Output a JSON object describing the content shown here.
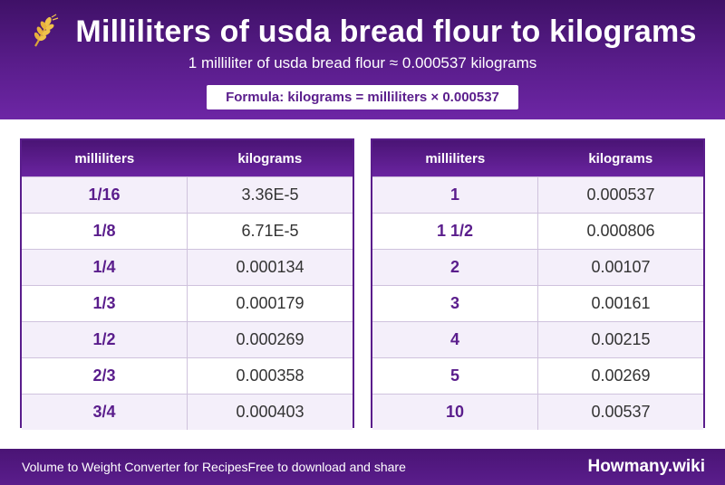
{
  "header": {
    "title": "Milliliters of usda bread flour to kilograms",
    "subtitle": "1 milliliter of usda bread flour ≈ 0.000537 kilograms",
    "formula": "Formula: kilograms = milliliters × 0.000537",
    "icon": "wheat-icon"
  },
  "tables": {
    "left": {
      "headers": [
        "milliliters",
        "kilograms"
      ],
      "rows": [
        {
          "ml": "1/16",
          "kg": "3.36E-5"
        },
        {
          "ml": "1/8",
          "kg": "6.71E-5"
        },
        {
          "ml": "1/4",
          "kg": "0.000134"
        },
        {
          "ml": "1/3",
          "kg": "0.000179"
        },
        {
          "ml": "1/2",
          "kg": "0.000269"
        },
        {
          "ml": "2/3",
          "kg": "0.000358"
        },
        {
          "ml": "3/4",
          "kg": "0.000403"
        }
      ]
    },
    "right": {
      "headers": [
        "milliliters",
        "kilograms"
      ],
      "rows": [
        {
          "ml": "1",
          "kg": "0.000537"
        },
        {
          "ml": "1 1/2",
          "kg": "0.000806"
        },
        {
          "ml": "2",
          "kg": "0.00107"
        },
        {
          "ml": "3",
          "kg": "0.00161"
        },
        {
          "ml": "4",
          "kg": "0.00215"
        },
        {
          "ml": "5",
          "kg": "0.00269"
        },
        {
          "ml": "10",
          "kg": "0.00537"
        }
      ]
    }
  },
  "footer": {
    "left_text": "Volume to Weight Converter for Recipes",
    "left_sub": "Free to download and share",
    "brand": "Howmany.wiki"
  },
  "colors": {
    "accent": "#5a1d8c",
    "header_dark": "#3f1167",
    "row_alt": "#f4effa"
  }
}
